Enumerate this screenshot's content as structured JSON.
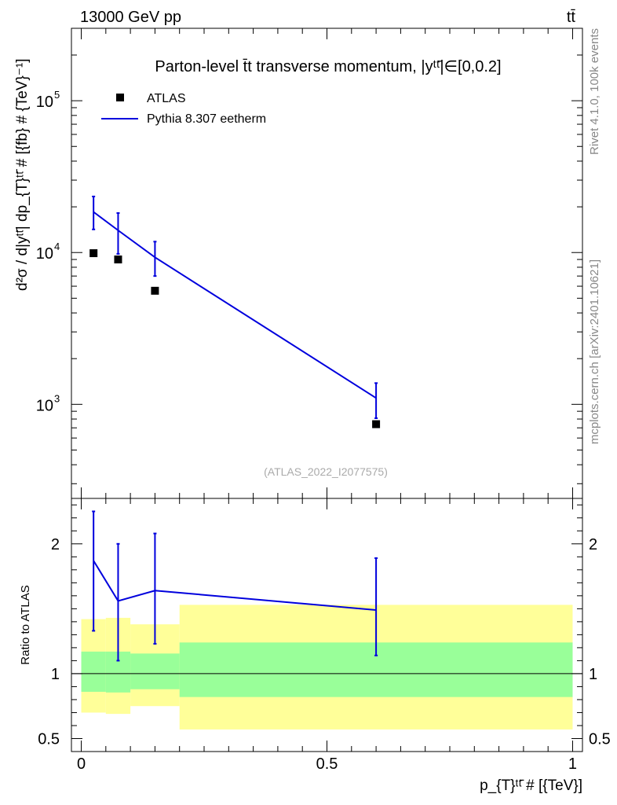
{
  "header": {
    "energy_label": "13000 GeV pp",
    "process_label": "tt̄"
  },
  "side_labels": {
    "rivet": "Rivet 4.1.0,  100k events",
    "mcplots": "mcplots.cern.ch [arXiv:2401.10621]"
  },
  "colors": {
    "data": "#000000",
    "mc": "#0000dd",
    "band_outer": "#ffff99",
    "band_inner": "#99ff99"
  },
  "chart_data": [
    {
      "type": "scatter",
      "panel": "main",
      "title": "Parton-level t̄t transverse momentum, |yᵗᵗ̄|∈[0,0.2]",
      "ylabel": "d²σ / d|yᵗᵗ̄| dp_{T}ᵗᵗ̄ # [{fb} # {TeV}⁻¹]",
      "yscale": "log",
      "xlim": [
        -0.02,
        1.02
      ],
      "ylim": [
        240,
        300000
      ],
      "yticks": [
        {
          "value": 1000,
          "base": "10",
          "exp": "3"
        },
        {
          "value": 10000,
          "base": "10",
          "exp": "4"
        },
        {
          "value": 100000,
          "base": "10",
          "exp": "5"
        }
      ],
      "watermark": "(ATLAS_2022_I2077575)",
      "legend_position": "top-left",
      "series": [
        {
          "name": "ATLAS",
          "style": "markers",
          "x": [
            0.025,
            0.075,
            0.15,
            0.6
          ],
          "y": [
            9900,
            9000,
            5600,
            740
          ]
        },
        {
          "name": "Pythia 8.307 eetherm",
          "style": "line",
          "x": [
            0.025,
            0.075,
            0.15,
            0.6
          ],
          "y": [
            18500,
            14000,
            9300,
            1100
          ],
          "yerr_low": [
            4300,
            4200,
            2300,
            290
          ],
          "yerr_high": [
            4900,
            4200,
            2500,
            280
          ]
        }
      ]
    },
    {
      "type": "line",
      "panel": "ratio",
      "ylabel": "Ratio to ATLAS",
      "xlabel": "p_{T}ᵗᵗ̄ # [{TeV}]",
      "ylim": [
        0.4,
        2.35
      ],
      "yticks": [
        {
          "value": 0.5,
          "label": "0.5"
        },
        {
          "value": 1,
          "label": "1"
        },
        {
          "value": 2,
          "label": "2"
        }
      ],
      "xticks": [
        {
          "value": 0,
          "label": "0"
        },
        {
          "value": 0.5,
          "label": "0.5"
        },
        {
          "value": 1,
          "label": "1"
        }
      ],
      "bins": [
        [
          0,
          0.05
        ],
        [
          0.05,
          0.1
        ],
        [
          0.1,
          0.2
        ],
        [
          0.2,
          1.0
        ]
      ],
      "band_outer": {
        "low": [
          0.7,
          0.69,
          0.75,
          0.57
        ],
        "high": [
          1.42,
          1.43,
          1.38,
          1.53
        ]
      },
      "band_inner": {
        "low": [
          0.86,
          0.855,
          0.88,
          0.82
        ],
        "high": [
          1.17,
          1.17,
          1.155,
          1.24
        ]
      },
      "series": [
        {
          "name": "Pythia 8.307 eetherm",
          "x": [
            0.025,
            0.075,
            0.15,
            0.6
          ],
          "y": [
            1.87,
            1.56,
            1.64,
            1.49
          ],
          "yerr_low": [
            0.54,
            0.46,
            0.41,
            0.35
          ],
          "yerr_high": [
            0.38,
            0.44,
            0.44,
            0.4
          ]
        }
      ]
    }
  ]
}
